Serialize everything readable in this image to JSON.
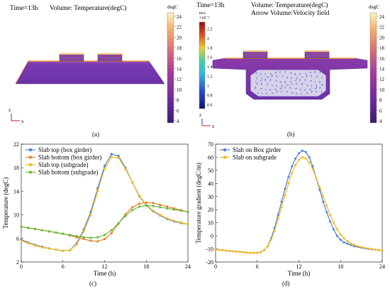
{
  "panel_a": {
    "header_time": "Time=13h",
    "header_volume": "Volume: Temperature(degC)",
    "colorbar_unit": "degC",
    "colorbar_ticks": [
      "24",
      "22",
      "20",
      "18",
      "16",
      "14",
      "12",
      "10",
      "8",
      "6",
      "4"
    ],
    "axis_z": "z",
    "axis_x": "x",
    "caption": "(a)"
  },
  "panel_b": {
    "header_time": "Time=13h",
    "header_volume": "Volume: Temperature(degC)",
    "header_arrow": "Arrow Volume:Velocity field",
    "velocity_unit": "m/s",
    "velocity_scale": "×10⁻²",
    "velocity_ticks": [
      "2.2",
      "2",
      "1.8",
      "1.6",
      "1.4",
      "1.2",
      "1",
      "0.8",
      "0.6"
    ],
    "colorbar_unit": "degC",
    "colorbar_ticks": [
      "24",
      "22",
      "20",
      "18",
      "16",
      "14",
      "12",
      "10",
      "8",
      "6",
      "4"
    ],
    "axis_z": "z",
    "axis_x": "x",
    "caption": "(b)"
  },
  "colors": {
    "temp_low": "#5a2a9a",
    "temp_mid": "#c65a8a",
    "temp_high": "#f7f0b0",
    "blue": "#4a7fd4",
    "orange": "#e8822a",
    "yellow": "#f2b81c",
    "green": "#6ab83c"
  },
  "chart_data": [
    {
      "type": "line",
      "panel": "c",
      "caption": "(c)",
      "xlabel": "Time (h)",
      "ylabel": "Temperature (degC)",
      "xlim": [
        0,
        24
      ],
      "ylim": [
        2,
        22
      ],
      "xticks": [
        0,
        6,
        12,
        18,
        24
      ],
      "yticks": [
        2,
        6,
        10,
        14,
        18,
        22
      ],
      "legend_position": "top-left",
      "x": [
        0,
        1,
        2,
        3,
        4,
        5,
        6,
        7,
        8,
        9,
        10,
        11,
        12,
        13,
        14,
        15,
        16,
        17,
        18,
        19,
        20,
        21,
        22,
        23,
        24
      ],
      "series": [
        {
          "name": "Slab top (box girder)",
          "color": "#4a7fd4",
          "values": [
            5.8,
            5.3,
            4.9,
            4.6,
            4.3,
            4.1,
            3.9,
            4.0,
            5.2,
            7.5,
            10.5,
            14.5,
            18.3,
            20.3,
            20.0,
            18.0,
            15.5,
            13.2,
            11.6,
            10.6,
            9.9,
            9.3,
            8.9,
            8.6,
            8.4
          ]
        },
        {
          "name": "Slab bottom (box girder)",
          "color": "#e8822a",
          "values": [
            8.0,
            7.8,
            7.6,
            7.4,
            7.2,
            7.0,
            6.8,
            6.5,
            6.2,
            5.9,
            5.6,
            5.5,
            5.9,
            6.9,
            8.5,
            10.1,
            11.3,
            11.9,
            12.1,
            12.0,
            11.7,
            11.4,
            11.1,
            10.8,
            10.5
          ]
        },
        {
          "name": "Slab top (subgrade)",
          "color": "#f2b81c",
          "values": [
            5.6,
            5.2,
            4.8,
            4.5,
            4.3,
            4.1,
            3.9,
            4.0,
            5.0,
            7.2,
            10.0,
            14.0,
            17.8,
            19.8,
            19.7,
            17.8,
            15.5,
            13.3,
            11.7,
            10.7,
            10.0,
            9.4,
            9.0,
            8.7,
            8.4
          ]
        },
        {
          "name": "Slab bottom (subgrade)",
          "color": "#6ab83c",
          "values": [
            8.0,
            7.8,
            7.6,
            7.4,
            7.2,
            7.0,
            6.8,
            6.6,
            6.4,
            6.2,
            6.1,
            6.2,
            6.6,
            7.4,
            8.6,
            9.8,
            10.8,
            11.4,
            11.6,
            11.5,
            11.3,
            11.1,
            10.9,
            10.7,
            10.5
          ]
        }
      ]
    },
    {
      "type": "line",
      "panel": "d",
      "caption": "(d)",
      "xlabel": "Time (h)",
      "ylabel": "Temperature gradient (degC/m)",
      "xlim": [
        0,
        24
      ],
      "ylim": [
        -20,
        70
      ],
      "xticks": [
        0,
        6,
        12,
        18,
        24
      ],
      "yticks": [
        -20,
        -10,
        0,
        10,
        20,
        30,
        40,
        50,
        60,
        70
      ],
      "legend_position": "top-left",
      "x": [
        0,
        0.5,
        1,
        1.5,
        2,
        2.5,
        3,
        3.5,
        4,
        4.5,
        5,
        5.5,
        6,
        6.5,
        7,
        7.5,
        8,
        8.5,
        9,
        9.5,
        10,
        10.5,
        11,
        11.5,
        12,
        12.5,
        13,
        13.5,
        14,
        14.5,
        15,
        15.5,
        16,
        16.5,
        17,
        17.5,
        18,
        18.5,
        19,
        19.5,
        20,
        20.5,
        21,
        21.5,
        22,
        22.5,
        23,
        23.5,
        24
      ],
      "series": [
        {
          "name": "Slab on Box girder",
          "color": "#4a7fd4",
          "values": [
            -10.5,
            -10.7,
            -11,
            -11.2,
            -11.5,
            -11.8,
            -12,
            -12.2,
            -12.5,
            -12.8,
            -13,
            -13,
            -13,
            -12.5,
            -11,
            -8,
            -2,
            6,
            16,
            26,
            36,
            45,
            53,
            59,
            63,
            65,
            64,
            60,
            53,
            44,
            35,
            26,
            18,
            11,
            5,
            0,
            -3,
            -5,
            -6,
            -7,
            -8,
            -8.5,
            -9,
            -9.5,
            -10,
            -10.3,
            -10.6,
            -10.9,
            -11.2
          ]
        },
        {
          "name": "Slab on subgrade",
          "color": "#f2b81c",
          "values": [
            -10.5,
            -10.7,
            -11,
            -11.2,
            -11.5,
            -11.8,
            -12,
            -12.2,
            -12.5,
            -12.8,
            -13,
            -13,
            -13,
            -12.5,
            -11,
            -8,
            -3,
            4,
            13,
            22,
            31,
            40,
            48,
            54,
            58,
            60,
            59,
            56,
            51,
            44,
            37,
            30,
            23,
            16,
            10,
            5,
            1,
            -2,
            -4,
            -6,
            -7,
            -8,
            -8.6,
            -9.2,
            -9.7,
            -10.1,
            -10.5,
            -10.9,
            -11.2
          ]
        }
      ]
    }
  ]
}
